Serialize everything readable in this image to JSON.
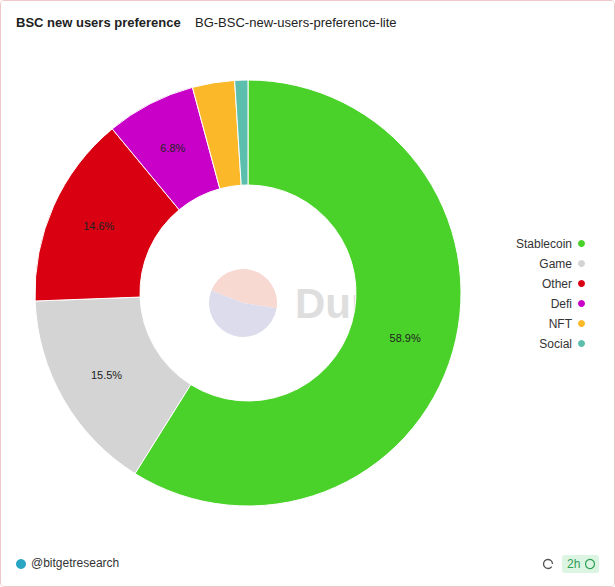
{
  "chart_data": {
    "type": "pie",
    "title": "BSC new users preference",
    "subtitle": "BG-BSC-new-users-preference-lite",
    "categories": [
      "Stablecoin",
      "Game",
      "Other",
      "Defi",
      "NFT",
      "Social"
    ],
    "values": [
      58.9,
      15.5,
      14.6,
      6.8,
      3.2,
      1.0
    ],
    "value_labels": [
      "58.9%",
      "15.5%",
      "14.6%",
      "6.8%",
      null,
      null
    ],
    "colors": [
      "#4ad22a",
      "#d4d4d4",
      "#d90012",
      "#c800c8",
      "#fbb829",
      "#5cbfae"
    ],
    "data_labels": true,
    "legend": "right",
    "annotations": {
      "watermark": "Dune",
      "source": "@bitgetresearch",
      "refresh": "2h"
    }
  }
}
